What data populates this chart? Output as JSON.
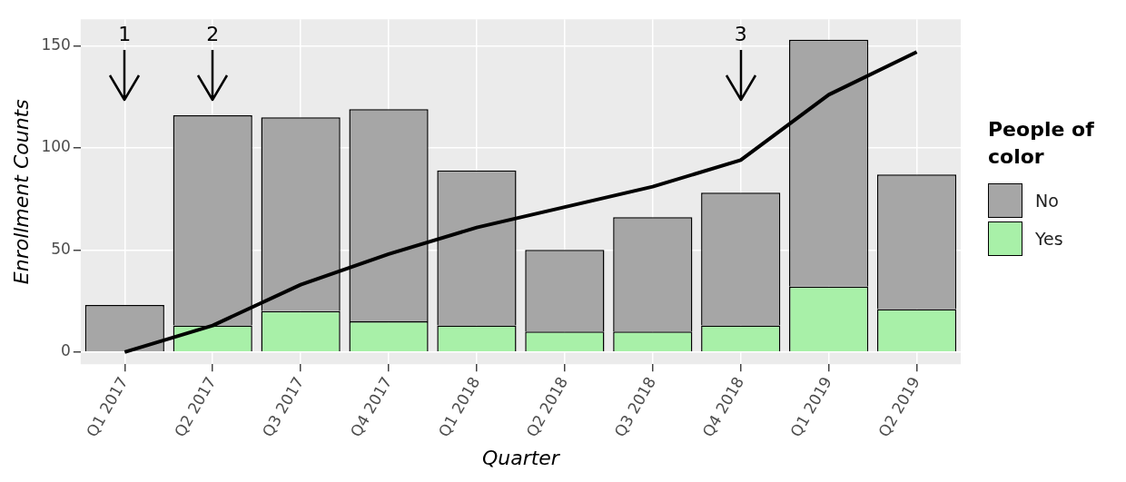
{
  "chart_data": {
    "type": "bar",
    "stacked": true,
    "xlabel": "Quarter",
    "ylabel": "Enrollment Counts",
    "legend_title": "People of color",
    "legend": "right",
    "grid": true,
    "ylim": [
      -6,
      163
    ],
    "yticks": [
      0,
      50,
      100,
      150
    ],
    "categories": [
      "Q1 2017",
      "Q2 2017",
      "Q3 2017",
      "Q4 2017",
      "Q1 2018",
      "Q2 2018",
      "Q3 2018",
      "Q4 2018",
      "Q1 2019",
      "Q2 2019"
    ],
    "series": [
      {
        "name": "Yes",
        "color": "#a8f0a8",
        "values": [
          0,
          13,
          20,
          15,
          13,
          10,
          10,
          13,
          32,
          21
        ]
      },
      {
        "name": "No",
        "color": "#a6a6a6",
        "values": [
          23,
          103,
          95,
          104,
          76,
          40,
          56,
          65,
          121,
          66
        ]
      },
      {
        "type": "line",
        "color": "#000000",
        "marker": "none",
        "values": [
          0,
          13,
          33,
          48,
          61,
          71,
          81,
          94,
          126,
          147
        ]
      }
    ],
    "annotations": [
      "1",
      "2",
      "3"
    ]
  }
}
